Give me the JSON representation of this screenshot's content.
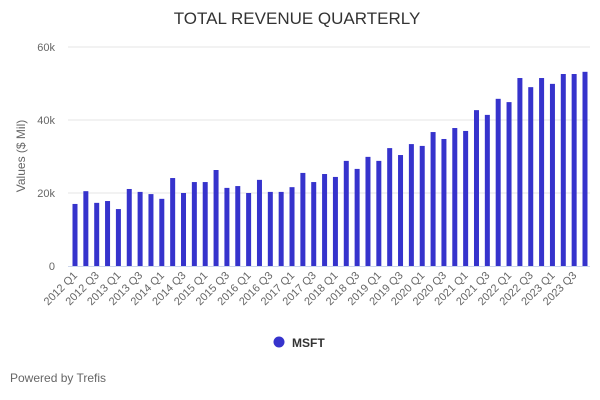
{
  "chart_data": {
    "type": "bar",
    "title": "TOTAL REVENUE QUARTERLY",
    "ylabel": "Values ($ Mil)",
    "xlabel": "",
    "ylim": [
      0,
      60000
    ],
    "yticks": [
      0,
      20000,
      40000,
      60000
    ],
    "ytick_labels": [
      "0",
      "20k",
      "40k",
      "60k"
    ],
    "grid": true,
    "legend_placement": "bottom",
    "categories": [
      "2012 Q1",
      "2012 Q2",
      "2012 Q3",
      "2012 Q4",
      "2013 Q1",
      "2013 Q2",
      "2013 Q3",
      "2013 Q4",
      "2014 Q1",
      "2014 Q2",
      "2014 Q3",
      "2014 Q4",
      "2015 Q1",
      "2015 Q2",
      "2015 Q3",
      "2015 Q4",
      "2016 Q1",
      "2016 Q2",
      "2016 Q3",
      "2016 Q4",
      "2017 Q1",
      "2017 Q2",
      "2017 Q3",
      "2017 Q4",
      "2018 Q1",
      "2018 Q2",
      "2018 Q3",
      "2018 Q4",
      "2019 Q1",
      "2019 Q2",
      "2019 Q3",
      "2019 Q4",
      "2020 Q1",
      "2020 Q2",
      "2020 Q3",
      "2020 Q4",
      "2021 Q1",
      "2021 Q2",
      "2021 Q3",
      "2021 Q4",
      "2022 Q1",
      "2022 Q2",
      "2022 Q3",
      "2022 Q4",
      "2023 Q1",
      "2023 Q2",
      "2023 Q3",
      "2023 Q4"
    ],
    "series": [
      {
        "name": "MSFT",
        "color": "#3633cc",
        "values": [
          17000,
          20500,
          17300,
          17800,
          15600,
          21100,
          20300,
          19700,
          18400,
          24100,
          20000,
          23000,
          23000,
          26300,
          21400,
          21900,
          20000,
          23600,
          20300,
          20300,
          21600,
          25500,
          23000,
          25200,
          24400,
          28800,
          26600,
          29900,
          28800,
          32300,
          30400,
          33400,
          32900,
          36700,
          34800,
          37800,
          37000,
          42700,
          41400,
          45800,
          44900,
          51500,
          49000,
          51500,
          49900,
          52600,
          52600,
          53200
        ]
      }
    ]
  },
  "footer": "Powered by Trefis"
}
